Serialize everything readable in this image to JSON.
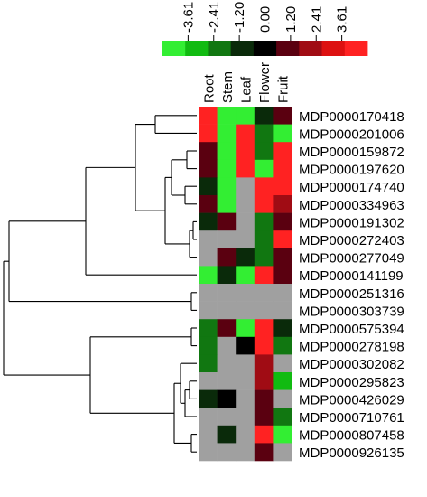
{
  "chart_data": {
    "type": "heatmap",
    "color_scale": {
      "ticks": [
        "-3.61",
        "-2.41",
        "-1.20",
        "0.00",
        "1.20",
        "2.41",
        "3.61"
      ],
      "bins": [
        "#33ee33",
        "#11bb11",
        "#117711",
        "#0a2a0a",
        "#000000",
        "#5a0010",
        "#a00c14",
        "#dd1111",
        "#ff2222"
      ]
    },
    "na_color": "#a0a0a0",
    "columns": [
      "Root",
      "Stem",
      "Leaf",
      "Flower",
      "Fruit"
    ],
    "rows": [
      "MDP0000170418",
      "MDP0000201006",
      "MDP0000159872",
      "MDP0000197620",
      "MDP0000174740",
      "MDP0000334963",
      "MDP0000191302",
      "MDP0000272403",
      "MDP0000277049",
      "MDP0000141199",
      "MDP0000251316",
      "MDP0000303739",
      "MDP0000575394",
      "MDP0000278198",
      "MDP0000302082",
      "MDP0000295823",
      "MDP0000426029",
      "MDP0000710761",
      "MDP0000807458",
      "MDP0000926135"
    ],
    "values": [
      [
        3.61,
        -3.61,
        -3.61,
        -0.9,
        0.9
      ],
      [
        3.61,
        -3.61,
        3.61,
        -1.6,
        -3.61
      ],
      [
        0.5,
        -3.61,
        3.61,
        -1.6,
        3.61
      ],
      [
        0.5,
        -3.61,
        3.61,
        -3.0,
        3.61
      ],
      [
        -0.5,
        -3.61,
        null,
        3.0,
        3.61
      ],
      [
        1.2,
        -3.61,
        null,
        3.0,
        1.8
      ],
      [
        -0.5,
        0.5,
        null,
        -1.6,
        1.2
      ],
      [
        null,
        null,
        null,
        -1.6,
        3.0
      ],
      [
        null,
        1.2,
        -0.9,
        -1.6,
        1.2
      ],
      [
        -3.61,
        -0.5,
        -3.0,
        3.61,
        0.5
      ],
      [
        null,
        null,
        null,
        null,
        null
      ],
      [
        null,
        null,
        null,
        null,
        null
      ],
      [
        -1.6,
        0.5,
        -3.61,
        3.61,
        -0.9
      ],
      [
        -1.6,
        null,
        0.0,
        3.61,
        -1.6
      ],
      [
        -1.6,
        null,
        null,
        1.6,
        null
      ],
      [
        null,
        null,
        null,
        1.6,
        -2.2
      ],
      [
        -1.2,
        0.0,
        null,
        1.2,
        null
      ],
      [
        null,
        null,
        null,
        1.2,
        -1.6
      ],
      [
        null,
        -0.5,
        null,
        3.61,
        -3.61
      ],
      [
        null,
        null,
        null,
        0.5,
        null
      ]
    ]
  }
}
